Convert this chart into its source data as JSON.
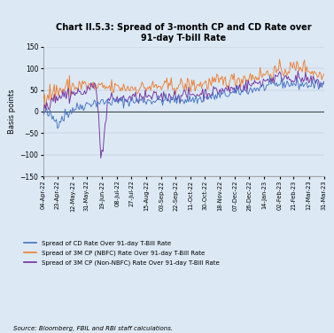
{
  "title": "Chart II.5.3: Spread of 3-month CP and CD Rate over\n91-day T-bill Rate",
  "ylabel": "Basis points",
  "source": "Source: Bloomberg, FBIL and RBI staff calculations.",
  "ylim": [
    -150,
    150
  ],
  "yticks": [
    -150,
    -100,
    -50,
    0,
    50,
    100,
    150
  ],
  "background_color": "#dce9f5",
  "plot_bg_color": "#dce9f5",
  "line_colors": {
    "cd": "#4472c4",
    "nbfc": "#ed7d31",
    "non_nbfc": "#7030a0"
  },
  "legend_labels": [
    "Spread of CD Rate Over 91-day T-Bill Rate",
    "Spread of 3M CP (NBFC) Rate Over 91-day T-Bill Rate",
    "Spread of 3M CP (Non-NBFC) Rate Over 91-day T-Bill Rate"
  ],
  "xtick_labels": [
    "04-Apr-22",
    "23-Apr-22",
    "12-May-22",
    "31-May-22",
    "19-Jun-22",
    "08-Jul-22",
    "27-Jul-22",
    "15-Aug-22",
    "03-Sep-22",
    "22-Sep-22",
    "11-Oct-22",
    "30-Oct-22",
    "18-Nov-22",
    "07-Dec-22",
    "26-Dec-22",
    "14-Jan-23",
    "02-Feb-23",
    "21-Feb-23",
    "12-Mar-23",
    "31-Mar-23"
  ]
}
